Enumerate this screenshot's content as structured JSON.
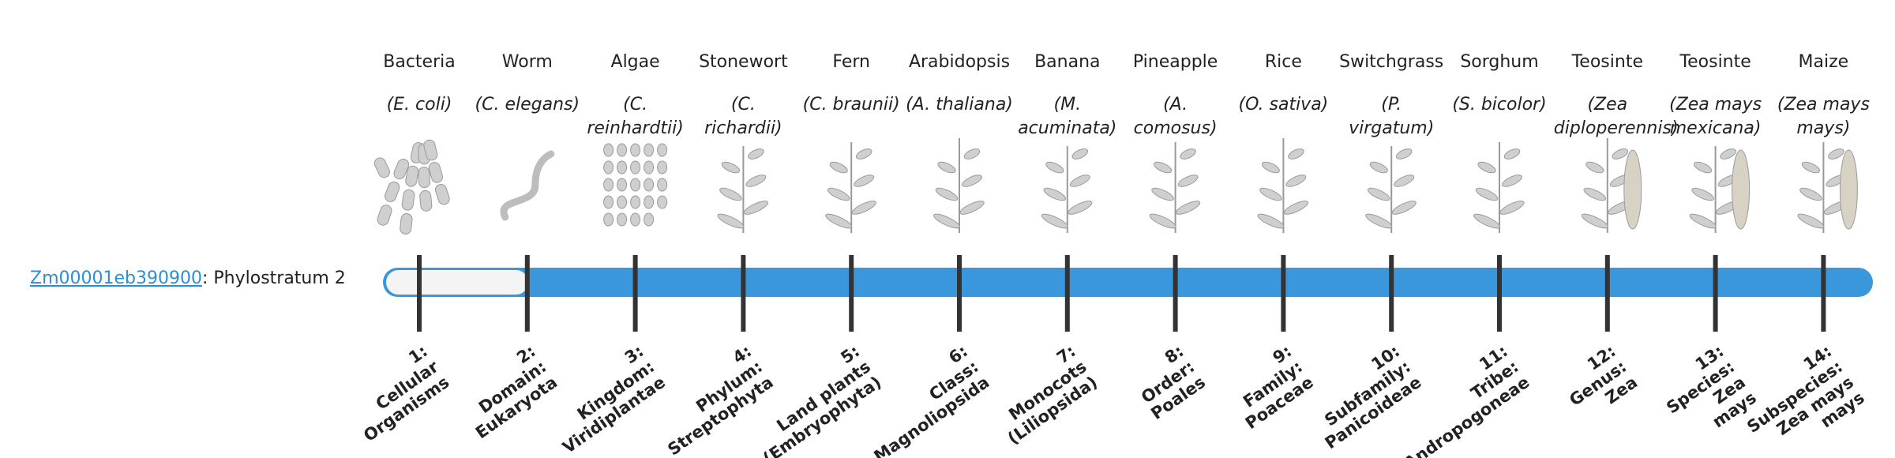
{
  "gene_id": "Zm00001eb390900",
  "label": ": Phylostratum 2",
  "organisms": [
    {
      "name": "Bacteria",
      "species": "(E. coli)",
      "stratum": [
        "1:",
        "Cellular",
        "Organisms"
      ]
    },
    {
      "name": "Worm",
      "species": "(C. elegans)",
      "stratum": [
        "2:",
        "Domain:",
        "Eukaryota"
      ]
    },
    {
      "name": "Algae",
      "species": "(C. reinhardtii)",
      "stratum": [
        "3:",
        "Kingdom:",
        "Viridiplantae"
      ]
    },
    {
      "name": "Stonewort",
      "species": "(C. richardii)",
      "stratum": [
        "4:",
        "Phylum:",
        "Streptophyta"
      ]
    },
    {
      "name": "Fern",
      "species": "(C. braunii)",
      "stratum": [
        "5:",
        "Land plants",
        "(Embryophyta)"
      ]
    },
    {
      "name": "Arabidopsis",
      "species": "(A. thaliana)",
      "stratum": [
        "6:",
        "Class:",
        "Magnoliopsida"
      ]
    },
    {
      "name": "Banana",
      "species": "(M. acuminata)",
      "stratum": [
        "7:",
        "Monocots",
        "(Liliopsida)"
      ]
    },
    {
      "name": "Pineapple",
      "species": "(A. comosus)",
      "stratum": [
        "8:",
        "Order:",
        "Poales"
      ]
    },
    {
      "name": "Rice",
      "species": "(O. sativa)",
      "stratum": [
        "9:",
        "Family:",
        "Poaceae"
      ]
    },
    {
      "name": "Switchgrass",
      "species": "(P. virgatum)",
      "stratum": [
        "10:",
        "Subfamily:",
        "Panicoideae"
      ]
    },
    {
      "name": "Sorghum",
      "species": "(S. bicolor)",
      "stratum": [
        "11:",
        "Tribe:",
        "Andropogoneae"
      ]
    },
    {
      "name": "Teosinte",
      "species": "(Zea diploperennis)",
      "stratum": [
        "12:",
        "Genus:",
        "Zea"
      ]
    },
    {
      "name": "Teosinte",
      "species": "(Zea mays mexicana)",
      "stratum": [
        "13:",
        "Species:",
        "Zea",
        "mays"
      ]
    },
    {
      "name": "Maize",
      "species": "(Zea mays mays)",
      "stratum": [
        "14:",
        "Subspecies:",
        "Zea mays",
        "mays"
      ]
    }
  ]
}
